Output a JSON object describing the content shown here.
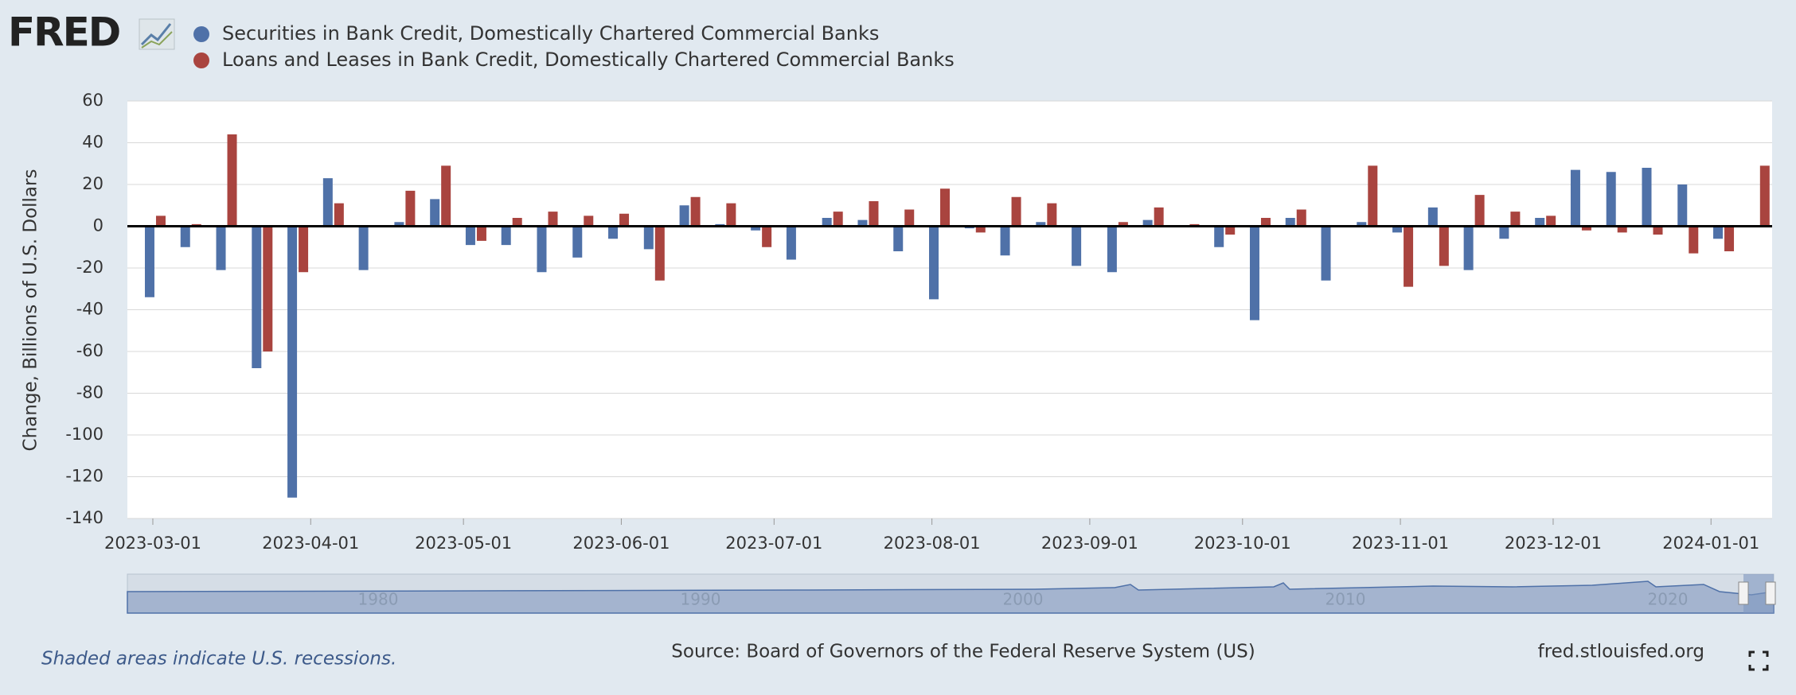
{
  "header": {
    "logo": "FRED"
  },
  "chart_data": {
    "type": "bar",
    "y_label": "Change, Billions of U.S. Dollars",
    "x": [
      "2023-03-01",
      "2023-03-08",
      "2023-03-15",
      "2023-03-22",
      "2023-03-29",
      "2023-04-05",
      "2023-04-12",
      "2023-04-19",
      "2023-04-26",
      "2023-05-03",
      "2023-05-10",
      "2023-05-17",
      "2023-05-24",
      "2023-05-31",
      "2023-06-07",
      "2023-06-14",
      "2023-06-21",
      "2023-06-28",
      "2023-07-05",
      "2023-07-12",
      "2023-07-19",
      "2023-07-26",
      "2023-08-02",
      "2023-08-09",
      "2023-08-16",
      "2023-08-23",
      "2023-08-30",
      "2023-09-06",
      "2023-09-13",
      "2023-09-20",
      "2023-09-27",
      "2023-10-04",
      "2023-10-11",
      "2023-10-18",
      "2023-10-25",
      "2023-11-01",
      "2023-11-08",
      "2023-11-15",
      "2023-11-22",
      "2023-11-29",
      "2023-12-06",
      "2023-12-13",
      "2023-12-20",
      "2023-12-27",
      "2024-01-03",
      "2024-01-10"
    ],
    "series": [
      {
        "name": "Securities in Bank Credit, Domestically Chartered Commercial Banks",
        "color": "#4f71a8",
        "values": [
          -34,
          -10,
          -21,
          -68,
          -130,
          23,
          -21,
          2,
          13,
          -9,
          -9,
          -22,
          -15,
          -6,
          -11,
          10,
          1,
          -2,
          -16,
          4,
          3,
          -12,
          -35,
          -1,
          -14,
          2,
          -19,
          -22,
          3,
          0,
          -10,
          -45,
          4,
          -26,
          2,
          -3,
          9,
          -21,
          -6,
          4,
          27,
          26,
          28,
          20,
          -6,
          0
        ]
      },
      {
        "name": "Loans and Leases in Bank Credit, Domestically Chartered Commercial Banks",
        "color": "#a9443f",
        "values": [
          5,
          1,
          44,
          -60,
          -22,
          11,
          0,
          17,
          29,
          -7,
          4,
          7,
          5,
          6,
          -26,
          14,
          11,
          -10,
          0,
          7,
          12,
          8,
          18,
          -3,
          14,
          11,
          0,
          2,
          9,
          1,
          -4,
          4,
          8,
          0,
          29,
          -29,
          -19,
          15,
          7,
          5,
          -2,
          -3,
          -4,
          -13,
          -12,
          29
        ]
      }
    ],
    "xlim": [
      "2023-02-24",
      "2024-01-13"
    ],
    "xticks": [
      "2023-03-01",
      "2023-04-01",
      "2023-05-01",
      "2023-06-01",
      "2023-07-01",
      "2023-08-01",
      "2023-09-01",
      "2023-10-01",
      "2023-11-01",
      "2023-12-01",
      "2024-01-01"
    ],
    "ylim": [
      -140,
      60
    ],
    "yticks": [
      -140,
      -120,
      -100,
      -80,
      -60,
      -40,
      -20,
      0,
      20,
      40,
      60
    ],
    "grid": true
  },
  "navigator": {
    "labels": [
      "1980",
      "1990",
      "2000",
      "2010",
      "2020"
    ]
  },
  "footer": {
    "note": "Shaded areas indicate U.S. recessions.",
    "source": "Source: Board of Governors of the Federal Reserve System (US)",
    "site": "fred.stlouisfed.org"
  }
}
